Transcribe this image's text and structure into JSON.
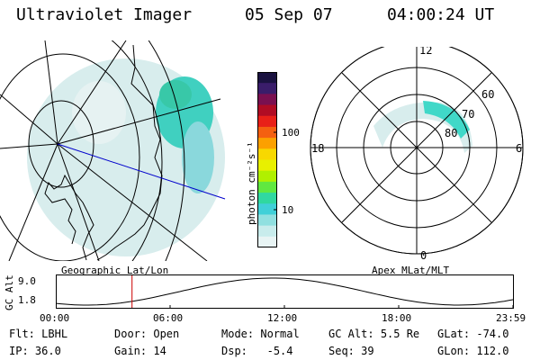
{
  "header": {
    "instrument": "Ultraviolet Imager",
    "date": "05 Sep 07",
    "time": "04:00:24 UT"
  },
  "geo_panel": {
    "caption": "Geographic Lat/Lon"
  },
  "colorbar": {
    "unit_label": "photon cm⁻²s⁻¹",
    "ticks": [
      "100",
      "10"
    ],
    "colors": [
      "#1a1240",
      "#3a1d6a",
      "#7a1050",
      "#b00c24",
      "#e82018",
      "#f46010",
      "#fca000",
      "#f8d800",
      "#e8f000",
      "#b0f000",
      "#60e840",
      "#30d8a0",
      "#40d0d8",
      "#90e0e0",
      "#c8ecec",
      "#e8f4f4"
    ]
  },
  "polar_panel": {
    "caption": "Apex MLat/MLT",
    "mlt_labels": {
      "top": "12",
      "right": "6",
      "bottom": "0",
      "left": "18"
    },
    "lat_labels": [
      "60",
      "70",
      "80"
    ]
  },
  "altitude_plot": {
    "ylabel": "GC Alt",
    "ytick_top": "9.0",
    "ytick_bottom": "1.8",
    "xticks": [
      "00:00",
      "06:00",
      "12:00",
      "18:00",
      "23:59"
    ],
    "marker_time_hours": 4.0
  },
  "info": {
    "flt_label": "Flt:",
    "flt_value": "LBHL",
    "ip_label": "IP:",
    "ip_value": "36.0",
    "door_label": "Door:",
    "door_value": "Open",
    "gain_label": "Gain:",
    "gain_value": "14",
    "mode_label": "Mode:",
    "mode_value": "Normal",
    "dsp_label": "Dsp:",
    "dsp_value": "-5.4",
    "gcalt_label": "GC Alt:",
    "gcalt_value": "5.5 Re",
    "seq_label": "Seq:",
    "seq_value": "39",
    "glat_label": "GLat:",
    "glat_value": "-74.0",
    "glon_label": "GLon:",
    "glon_value": "112.0"
  }
}
